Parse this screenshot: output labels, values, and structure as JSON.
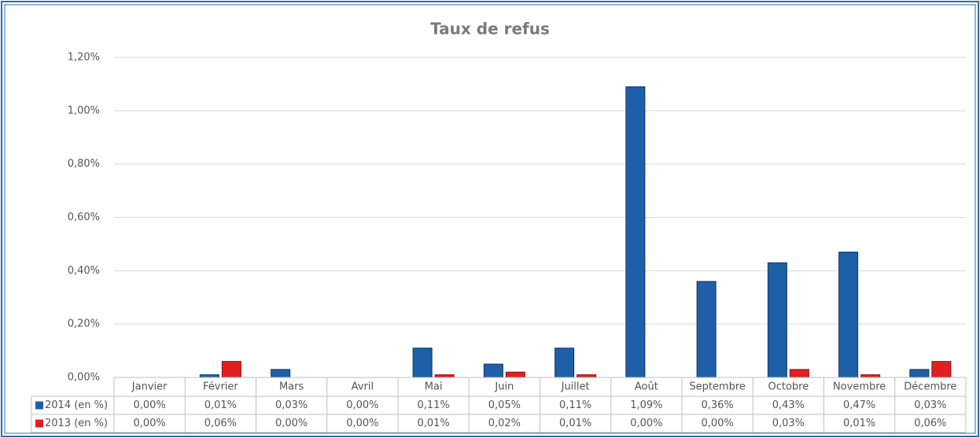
{
  "chart_data": {
    "type": "bar",
    "title": "Taux de refus",
    "categories": [
      "Janvier",
      "Février",
      "Mars",
      "Avril",
      "Mai",
      "Juin",
      "Juillet",
      "Août",
      "Septembre",
      "Octobre",
      "Novembre",
      "Décembre"
    ],
    "series": [
      {
        "name": "2014 (en %)",
        "color": "#1f5fa8",
        "values": [
          0,
          0.01,
          0.03,
          0,
          0.11,
          0.05,
          0.11,
          1.09,
          0.36,
          0.43,
          0.47,
          0.03
        ],
        "value_labels": [
          "0,00%",
          "0,01%",
          "0,03%",
          "0,00%",
          "0,11%",
          "0,05%",
          "0,11%",
          "1,09%",
          "0,36%",
          "0,43%",
          "0,47%",
          "0,03%"
        ]
      },
      {
        "name": "2013 (en %)",
        "color": "#e02020",
        "values": [
          0,
          0.06,
          0,
          0,
          0.01,
          0.02,
          0.01,
          0,
          0,
          0.03,
          0.01,
          0.06
        ],
        "value_labels": [
          "0,00%",
          "0,06%",
          "0,00%",
          "0,00%",
          "0,01%",
          "0,02%",
          "0,01%",
          "0,00%",
          "0,00%",
          "0,03%",
          "0,01%",
          "0,06%"
        ]
      }
    ],
    "ylim": [
      0,
      1.2
    ],
    "yticks": [
      {
        "value": 0,
        "label": "0,00%"
      },
      {
        "value": 0.2,
        "label": "0,20%"
      },
      {
        "value": 0.4,
        "label": "0,40%"
      },
      {
        "value": 0.6,
        "label": "0,60%"
      },
      {
        "value": 0.8,
        "label": "0,80%"
      },
      {
        "value": 1.0,
        "label": "1,00%"
      },
      {
        "value": 1.2,
        "label": "1,20%"
      }
    ],
    "grid": true
  }
}
